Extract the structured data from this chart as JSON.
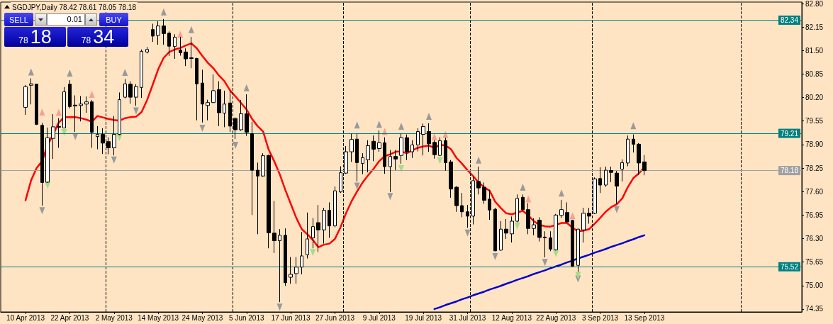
{
  "chart_data": {
    "type": "candlestick",
    "title": "SGDJPY,Daily 78.42 78.61 78.05 78.18",
    "color": "#000000",
    "annotations": [
      "SELL",
      "0.01",
      "BUY",
      "78",
      "18",
      "78",
      "34"
    ],
    "categories": [
      null,
      null,
      null,
      null,
      "10 Apr 2013",
      null,
      null,
      null,
      null,
      null,
      null,
      null,
      "22 Apr 2013",
      null,
      null,
      null,
      null,
      null,
      null,
      null,
      "2 May 2013",
      null,
      null,
      null,
      null,
      null,
      null,
      null,
      "14 May 2013",
      null,
      null,
      null,
      null,
      null,
      null,
      null,
      "24 May 2013",
      null,
      null,
      null,
      null,
      null,
      null,
      null,
      "5 Jun 2013",
      null,
      null,
      null,
      null,
      null,
      null,
      null,
      "17 Jun 2013",
      null,
      null,
      null,
      null,
      null,
      null,
      null,
      "27 Jun 2013",
      null,
      null,
      null,
      null,
      null,
      null,
      null,
      "9 Jul 2013",
      null,
      null,
      null,
      null,
      null,
      null,
      null,
      "19 Jul 2013",
      null,
      null,
      null,
      null,
      null,
      null,
      null,
      "31 Jul 2013",
      null,
      null,
      null,
      null,
      null,
      null,
      null,
      "12 Aug 2013",
      null,
      null,
      null,
      null,
      null,
      null,
      null,
      "22 Aug 2013",
      null,
      null,
      null,
      null,
      null,
      null,
      null,
      "3 Sep 2013",
      null,
      null,
      null,
      null,
      null,
      null,
      null,
      "13 Sep 2013",
      null,
      null,
      null,
      null,
      null,
      null,
      null,
      null,
      null,
      null,
      null,
      null,
      null,
      null,
      null,
      null,
      null,
      null,
      null,
      null,
      null,
      null,
      null,
      null,
      null,
      null,
      null,
      null
    ],
    "ohlc": [
      null,
      null,
      null,
      null,
      [
        79.93,
        80.55,
        79.72,
        80.5
      ],
      [
        80.54,
        80.73,
        80.01,
        80.58
      ],
      [
        80.57,
        80.58,
        79.44,
        79.46
      ],
      [
        79.43,
        79.5,
        77.21,
        77.85
      ],
      [
        77.86,
        79.37,
        77.84,
        79.09
      ],
      [
        79.07,
        79.74,
        78.5,
        79.39
      ],
      [
        79.4,
        79.63,
        78.81,
        79.38
      ],
      [
        79.36,
        80.49,
        79.35,
        80.36
      ],
      [
        80.57,
        80.68,
        79.9,
        79.95
      ],
      [
        79.99,
        80.26,
        79.25,
        79.97
      ],
      [
        79.98,
        80.24,
        79.54,
        80.02
      ],
      [
        80.02,
        80.23,
        79.78,
        80.08
      ],
      [
        80.08,
        80.13,
        78.81,
        79.24
      ],
      [
        79.12,
        79.41,
        78.77,
        79.18
      ],
      [
        79.18,
        79.35,
        78.64,
        78.94
      ],
      [
        78.98,
        79.1,
        78.63,
        78.81
      ],
      [
        78.81,
        79.69,
        78.6,
        79.18
      ],
      [
        79.18,
        80.34,
        79.16,
        80.14
      ],
      [
        80.21,
        80.71,
        80.18,
        80.58
      ],
      [
        80.57,
        80.65,
        80.03,
        80.21
      ],
      [
        80.21,
        80.57,
        79.97,
        80.5
      ],
      [
        80.48,
        81.53,
        80.19,
        81.48
      ],
      [
        81.46,
        81.6,
        81.42,
        81.53
      ],
      [
        82.08,
        82.24,
        81.74,
        81.9
      ],
      [
        81.92,
        82.31,
        81.66,
        82.18
      ],
      [
        82.18,
        82.37,
        81.66,
        81.97
      ],
      [
        81.98,
        82.03,
        81.35,
        81.62
      ],
      [
        81.61,
        81.95,
        81.27,
        81.87
      ],
      [
        81.51,
        81.88,
        81.36,
        81.44
      ],
      [
        81.46,
        81.56,
        81.07,
        81.27
      ],
      [
        81.3,
        81.88,
        81.01,
        81.28
      ],
      [
        81.28,
        81.3,
        79.57,
        80.58
      ],
      [
        80.6,
        80.97,
        79.51,
        80.02
      ],
      [
        79.98,
        80.14,
        79.57,
        80.06
      ],
      [
        80.06,
        80.84,
        80.05,
        80.39
      ],
      [
        80.42,
        80.65,
        79.41,
        79.78
      ],
      [
        79.77,
        80.39,
        79.38,
        80.02
      ],
      [
        80.05,
        80.39,
        79.25,
        79.41
      ],
      [
        79.62,
        79.65,
        79.05,
        79.31
      ],
      [
        79.31,
        80.13,
        79.28,
        79.75
      ],
      [
        79.75,
        80.29,
        79.14,
        79.24
      ],
      [
        79.2,
        79.53,
        76.95,
        78.19
      ],
      [
        78.19,
        78.4,
        76.42,
        78.03
      ],
      [
        78.03,
        78.66,
        78.01,
        78.59
      ],
      [
        78.6,
        78.62,
        76.03,
        76.46
      ],
      [
        76.45,
        77.34,
        75.9,
        76.24
      ],
      [
        76.24,
        76.56,
        74.54,
        76.39
      ],
      [
        76.39,
        76.58,
        74.99,
        75.08
      ],
      [
        75.23,
        75.79,
        75.05,
        75.31
      ],
      [
        75.33,
        75.79,
        75.05,
        75.51
      ],
      [
        75.51,
        76.48,
        75.31,
        75.82
      ],
      [
        75.85,
        77.02,
        75.75,
        76.29
      ],
      [
        76.32,
        76.87,
        76.03,
        76.63
      ],
      [
        76.74,
        77.23,
        75.93,
        76.54
      ],
      [
        76.54,
        77.15,
        76.16,
        77.08
      ],
      [
        77.08,
        77.3,
        76.32,
        76.65
      ],
      [
        76.65,
        77.74,
        76.61,
        77.62
      ],
      [
        77.59,
        78.3,
        77.56,
        78.12
      ],
      [
        78.11,
        78.86,
        78.09,
        78.7
      ],
      [
        78.7,
        79.2,
        78.42,
        79.04
      ],
      [
        79.05,
        79.2,
        77.88,
        78.4
      ],
      [
        78.38,
        78.66,
        78.08,
        78.54
      ],
      [
        78.48,
        79.02,
        78.13,
        78.87
      ],
      [
        78.99,
        79.15,
        78.44,
        78.77
      ],
      [
        78.79,
        79.29,
        78.7,
        78.95
      ],
      [
        78.95,
        79.1,
        78.09,
        78.29
      ],
      [
        78.29,
        78.75,
        77.59,
        78.57
      ],
      [
        78.57,
        78.75,
        78.19,
        78.5
      ],
      [
        78.6,
        79.2,
        78.37,
        79.09
      ],
      [
        79.09,
        79.18,
        78.47,
        78.7
      ],
      [
        78.7,
        79.02,
        78.53,
        78.89
      ],
      [
        78.89,
        79.35,
        78.71,
        79.26
      ],
      [
        79.18,
        79.48,
        78.6,
        79.4
      ],
      [
        79.26,
        79.49,
        78.7,
        78.92
      ],
      [
        78.96,
        79.02,
        78.51,
        78.62
      ],
      [
        78.6,
        79.1,
        78.58,
        79.01
      ],
      [
        79.01,
        79.09,
        78.18,
        78.4
      ],
      [
        78.42,
        78.47,
        77.43,
        77.67
      ],
      [
        77.72,
        77.75,
        77.04,
        77.21
      ],
      [
        77.21,
        77.56,
        76.89,
        77.04
      ],
      [
        77.04,
        77.23,
        76.6,
        76.92
      ],
      [
        76.92,
        78.01,
        76.69,
        77.9
      ],
      [
        77.88,
        78.29,
        77.52,
        77.7
      ],
      [
        77.72,
        77.85,
        77.26,
        77.36
      ],
      [
        77.39,
        77.65,
        76.82,
        77.09
      ],
      [
        77.11,
        77.15,
        75.95,
        75.96
      ],
      [
        75.98,
        76.78,
        75.96,
        76.56
      ],
      [
        76.56,
        76.84,
        76.29,
        76.45
      ],
      [
        76.43,
        76.91,
        76.19,
        76.78
      ],
      [
        76.78,
        77.52,
        76.75,
        77.41
      ],
      [
        77.44,
        77.52,
        77.07,
        77.1
      ],
      [
        77.1,
        77.28,
        76.42,
        76.58
      ],
      [
        76.58,
        76.86,
        76.39,
        76.68
      ],
      [
        76.81,
        76.89,
        76.22,
        76.33
      ],
      [
        76.34,
        76.5,
        75.78,
        76.32
      ],
      [
        76.32,
        76.5,
        75.95,
        76.01
      ],
      [
        75.99,
        76.98,
        75.97,
        76.95
      ],
      [
        76.94,
        77.37,
        76.87,
        77.1
      ],
      [
        77.02,
        77.3,
        76.74,
        76.76
      ],
      [
        76.8,
        76.82,
        75.52,
        75.54
      ],
      [
        75.56,
        76.57,
        75.38,
        76.56
      ],
      [
        76.54,
        77.15,
        76.19,
        77.0
      ],
      [
        77.0,
        77.15,
        76.71,
        76.92
      ],
      [
        77.0,
        77.99,
        76.98,
        77.95
      ],
      [
        77.96,
        78.27,
        77.56,
        77.78
      ],
      [
        77.78,
        78.29,
        77.73,
        78.19
      ],
      [
        78.18,
        78.29,
        77.86,
        78.13
      ],
      [
        78.11,
        78.17,
        77.25,
        77.75
      ],
      [
        78.22,
        78.49,
        77.88,
        78.4
      ],
      [
        78.39,
        79.15,
        78.3,
        79.05
      ],
      [
        79.05,
        79.18,
        78.68,
        78.91
      ],
      [
        78.91,
        78.94,
        78.06,
        78.39
      ],
      [
        78.42,
        78.61,
        78.05,
        78.18
      ],
      null,
      null,
      null,
      null,
      null,
      null,
      null,
      null,
      null,
      null,
      null,
      null,
      null,
      null,
      null,
      null,
      null,
      null,
      null,
      null,
      null,
      null,
      null,
      null,
      null,
      null,
      null,
      null
    ],
    "series": [
      {
        "type": "line",
        "color": "#ff0000",
        "values": [
          null,
          null,
          null,
          null,
          77.36,
          77.91,
          78.25,
          78.44,
          78.89,
          79.18,
          79.51,
          79.66,
          79.66,
          79.66,
          79.63,
          79.59,
          79.53,
          79.69,
          79.65,
          79.61,
          79.58,
          79.56,
          79.63,
          79.66,
          79.67,
          79.8,
          80.13,
          80.55,
          80.98,
          81.3,
          81.46,
          81.53,
          81.57,
          81.64,
          81.7,
          81.56,
          81.35,
          81.16,
          81.01,
          80.81,
          80.65,
          80.4,
          80.23,
          80.05,
          79.87,
          79.61,
          79.41,
          79.26,
          78.76,
          78.44,
          78.08,
          77.65,
          77.26,
          76.87,
          76.56,
          76.42,
          76.26,
          76.06,
          76.13,
          76.16,
          76.29,
          76.61,
          77.0,
          77.33,
          77.6,
          77.85,
          78.05,
          78.23,
          78.44,
          78.58,
          78.63,
          78.7,
          78.71,
          78.66,
          78.74,
          78.81,
          78.85,
          78.87,
          78.81,
          78.89,
          78.88,
          78.77,
          78.53,
          78.37,
          78.19,
          78.03,
          77.85,
          77.72,
          77.62,
          77.32,
          77.15,
          77.0,
          76.97,
          77.02,
          77.07,
          76.94,
          76.78,
          76.68,
          76.64,
          76.63,
          76.68,
          76.73,
          76.73,
          76.6,
          76.5,
          76.52,
          76.56,
          76.71,
          76.87,
          77.04,
          77.17,
          77.25,
          77.41,
          77.72,
          77.97,
          78.1,
          78.27,
          null,
          null,
          null,
          null,
          null,
          null,
          null,
          null,
          null,
          null,
          null,
          null,
          null,
          null,
          null,
          null,
          null,
          null,
          null,
          null,
          null,
          null,
          null,
          null,
          null,
          null,
          null,
          null
        ]
      },
      {
        "type": "line",
        "color": "#0000cc",
        "values": [
          null,
          null,
          null,
          null,
          null,
          null,
          null,
          null,
          null,
          null,
          null,
          null,
          null,
          null,
          null,
          null,
          null,
          null,
          null,
          null,
          null,
          null,
          null,
          null,
          null,
          null,
          null,
          null,
          null,
          null,
          null,
          null,
          null,
          null,
          null,
          null,
          null,
          null,
          null,
          null,
          null,
          null,
          null,
          null,
          null,
          null,
          null,
          null,
          null,
          null,
          null,
          null,
          null,
          null,
          null,
          null,
          null,
          null,
          null,
          null,
          null,
          null,
          null,
          null,
          null,
          null,
          null,
          null,
          null,
          null,
          null,
          null,
          null,
          null,
          null,
          null,
          null,
          null,
          74.35,
          74.4,
          74.46,
          74.51,
          74.56,
          74.62,
          74.67,
          74.73,
          74.78,
          74.83,
          74.89,
          74.94,
          74.99,
          75.05,
          75.1,
          75.16,
          75.21,
          75.26,
          75.32,
          75.37,
          75.42,
          75.48,
          75.53,
          75.58,
          75.64,
          75.69,
          75.75,
          75.8,
          75.85,
          75.91,
          75.96,
          76.01,
          76.07,
          76.12,
          76.17,
          76.23,
          76.28,
          76.34,
          76.39,
          null,
          null,
          null,
          null,
          null,
          null,
          null,
          null,
          null,
          null,
          null,
          null,
          null,
          null,
          null,
          null,
          null,
          null,
          null,
          null,
          null,
          null,
          null,
          null,
          null,
          null,
          null,
          null
        ]
      },
      {
        "type": "scatter",
        "color": "#9a9a9a",
        "marker": "triangle",
        "values": [
          null,
          null,
          null,
          null,
          null,
          80.91,
          null,
          null,
          null,
          null,
          null,
          null,
          80.88,
          null,
          null,
          null,
          null,
          null,
          null,
          null,
          null,
          null,
          80.9,
          null,
          null,
          null,
          null,
          null,
          null,
          82.57,
          null,
          null,
          null,
          null,
          82.08,
          null,
          null,
          null,
          null,
          null,
          null,
          null,
          null,
          null,
          80.47,
          null,
          null,
          null,
          null,
          null,
          null,
          null,
          null,
          null,
          null,
          null,
          null,
          null,
          null,
          null,
          null,
          null,
          null,
          null,
          79.44,
          null,
          null,
          null,
          79.46,
          null,
          null,
          null,
          79.41,
          null,
          null,
          null,
          null,
          79.68,
          null,
          null,
          null,
          null,
          null,
          null,
          null,
          null,
          78.47,
          null,
          null,
          null,
          null,
          null,
          null,
          null,
          77.72,
          null,
          null,
          null,
          null,
          null,
          null,
          77.56,
          null,
          null,
          null,
          null,
          null,
          null,
          null,
          null,
          null,
          null,
          null,
          null,
          79.42,
          null,
          null,
          null,
          null,
          null,
          null,
          null,
          null,
          null,
          null,
          null,
          null,
          null,
          null,
          null,
          null,
          null,
          null,
          null,
          null,
          null,
          null,
          null,
          null,
          null,
          null,
          null,
          null,
          null,
          null
        ]
      },
      {
        "type": "scatter",
        "color": "#9a9a9a",
        "marker": "triangle",
        "values": [
          null,
          null,
          null,
          null,
          null,
          null,
          null,
          77.07,
          null,
          null,
          null,
          null,
          null,
          79.12,
          null,
          null,
          null,
          null,
          null,
          null,
          78.47,
          null,
          null,
          null,
          79.83,
          null,
          null,
          null,
          null,
          null,
          null,
          null,
          null,
          null,
          null,
          null,
          79.35,
          null,
          null,
          null,
          null,
          null,
          78.88,
          null,
          null,
          null,
          null,
          null,
          null,
          null,
          74.4,
          null,
          null,
          null,
          null,
          null,
          null,
          null,
          null,
          null,
          null,
          null,
          null,
          null,
          77.75,
          null,
          null,
          null,
          null,
          null,
          77.46,
          null,
          null,
          null,
          null,
          null,
          null,
          null,
          null,
          null,
          null,
          null,
          null,
          null,
          76.45,
          null,
          null,
          null,
          null,
          75.8,
          null,
          null,
          null,
          null,
          null,
          null,
          null,
          null,
          75.64,
          null,
          null,
          null,
          null,
          null,
          75.18,
          null,
          null,
          null,
          null,
          null,
          null,
          77.1,
          null,
          null,
          null,
          null,
          null,
          null,
          null,
          null,
          null,
          null,
          null,
          null,
          null,
          null,
          null,
          null,
          null,
          null,
          null,
          null,
          null,
          null,
          null,
          null,
          null,
          null,
          null,
          null,
          null,
          null,
          null,
          null,
          null
        ]
      },
      {
        "type": "scatter",
        "color": "#f6a090",
        "marker": "triangle",
        "values": [
          null,
          null,
          null,
          null,
          null,
          null,
          null,
          79.8,
          null,
          null,
          79.79,
          null,
          null,
          null,
          null,
          null,
          80.29,
          null,
          null,
          null,
          null,
          null,
          null,
          null,
          null,
          null,
          null,
          null,
          null,
          null,
          null,
          null,
          81.95,
          null,
          null,
          null,
          null,
          null,
          null,
          null,
          null,
          null,
          null,
          null,
          null,
          null,
          null,
          null,
          null,
          null,
          null,
          null,
          null,
          null,
          null,
          null,
          null,
          null,
          null,
          null,
          null,
          null,
          null,
          null,
          null,
          null,
          null,
          null,
          null,
          79.26,
          null,
          null,
          null,
          null,
          null,
          null,
          null,
          null,
          79.12,
          null,
          79.18,
          null,
          null,
          null,
          null,
          null,
          null,
          null,
          null,
          null,
          null,
          null,
          null,
          null,
          null,
          77.4,
          null,
          null,
          null,
          null,
          null,
          null,
          null,
          76.93,
          null,
          null,
          null,
          null,
          null,
          null,
          null,
          null,
          null,
          null,
          null,
          null,
          null,
          null,
          null,
          null,
          null,
          null,
          null,
          null,
          null,
          null,
          null,
          null,
          null,
          null,
          null,
          null,
          null,
          null,
          null,
          null,
          null,
          null,
          null,
          null,
          null,
          null,
          null,
          null,
          null
        ]
      },
      {
        "type": "scatter",
        "color": "#a6dc8c",
        "marker": "triangle",
        "values": [
          null,
          null,
          null,
          null,
          null,
          null,
          null,
          null,
          77.77,
          null,
          null,
          79.23,
          null,
          null,
          null,
          null,
          null,
          null,
          null,
          null,
          null,
          79.09,
          null,
          null,
          null,
          null,
          null,
          null,
          null,
          null,
          null,
          null,
          null,
          null,
          null,
          null,
          null,
          null,
          null,
          null,
          null,
          null,
          null,
          null,
          null,
          null,
          null,
          null,
          null,
          null,
          null,
          null,
          null,
          null,
          null,
          null,
          75.91,
          null,
          null,
          null,
          null,
          null,
          null,
          null,
          null,
          null,
          null,
          null,
          null,
          null,
          null,
          null,
          78.23,
          null,
          null,
          null,
          null,
          null,
          null,
          78.45,
          null,
          null,
          null,
          null,
          null,
          null,
          null,
          null,
          null,
          null,
          null,
          null,
          null,
          76.65,
          null,
          null,
          null,
          null,
          null,
          null,
          75.88,
          null,
          null,
          null,
          75.28,
          null,
          null,
          null,
          null,
          null,
          null,
          null,
          null,
          null,
          null,
          null,
          null,
          null,
          null,
          null,
          null,
          null,
          null,
          null,
          null,
          null,
          null,
          null,
          null,
          null,
          null,
          null,
          null,
          null,
          null,
          null,
          null,
          null,
          null,
          null,
          null,
          null,
          null,
          null,
          null
        ]
      }
    ],
    "ref_lines": [
      {
        "axis": "y",
        "value": 82.34,
        "label": "82.34",
        "color": "#008080"
      },
      {
        "axis": "y",
        "value": 79.21,
        "label": "79.21",
        "color": "#008080"
      },
      {
        "axis": "y",
        "value": 75.52,
        "label": "75.52",
        "color": "#008080"
      },
      {
        "axis": "y",
        "value": 78.18,
        "label": "78.18",
        "color": "#a0a0a0"
      }
    ],
    "ylim": [
      74.27,
      82.84
    ],
    "yticks": [
      {
        "value": 82.8,
        "label": "82.80"
      },
      82.15,
      {
        "value": 81.5,
        "label": "81.50"
      },
      80.85,
      {
        "value": 80.2,
        "label": "80.20"
      },
      79.55,
      {
        "value": 78.9,
        "label": "78.90"
      },
      78.25,
      {
        "value": 77.6,
        "label": "77.60"
      },
      76.95,
      {
        "value": 76.3,
        "label": "76.30"
      },
      75.65,
      {
        "value": 75,
        "label": "75.00"
      },
      74.35
    ]
  }
}
